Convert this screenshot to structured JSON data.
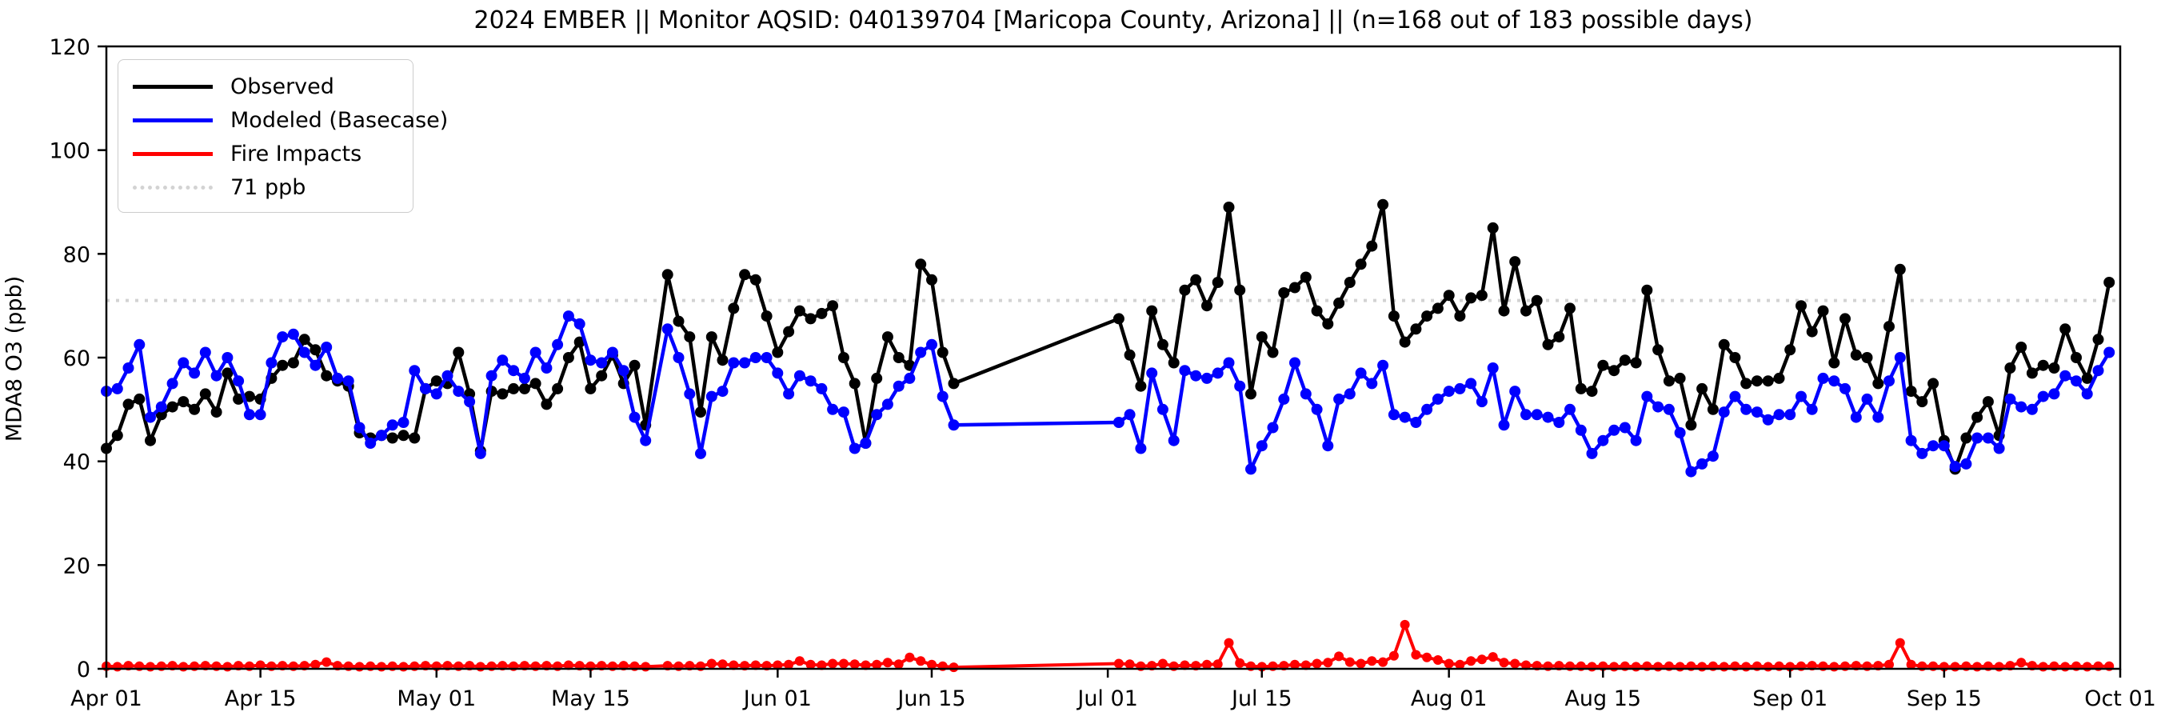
{
  "figure": {
    "title": "2024 EMBER || Monitor AQSID: 040139704 [Maricopa County, Arizona] || (n=168 out of 183 possible days)",
    "ylabel": "MDA8 O3 (ppb)"
  },
  "legend": {
    "observed_label": "Observed",
    "modeled_label": "Modeled (Basecase)",
    "fire_label": "Fire Impacts",
    "threshold_label": "71 ppb"
  },
  "chart_data": {
    "type": "line",
    "title": "2024 EMBER || Monitor AQSID: 040139704 [Maricopa County, Arizona] || (n=168 out of 183 possible days)",
    "xlabel": "",
    "ylabel": "MDA8 O3 (ppb)",
    "ylim": [
      0,
      120
    ],
    "yticks": [
      0,
      20,
      40,
      60,
      80,
      100,
      120
    ],
    "x_domain_days": 183,
    "x_start": "Apr 01",
    "x_end": "Oct 01",
    "x_tick_labels": [
      "Apr 01",
      "Apr 15",
      "May 01",
      "May 15",
      "Jun 01",
      "Jun 15",
      "Jul 01",
      "Jul 15",
      "Aug 01",
      "Aug 15",
      "Sep 01",
      "Sep 15",
      "Oct 01"
    ],
    "x_tick_day_index": [
      0,
      14,
      30,
      44,
      61,
      75,
      91,
      105,
      122,
      136,
      153,
      167,
      183
    ],
    "grid": false,
    "legend_position": "upper left",
    "threshold": {
      "value": 71,
      "label": "71 ppb",
      "color": "#d3d3d3",
      "style": "dotted"
    },
    "missing_days": [
      "May 21",
      "Jun 18 through Jul 01"
    ],
    "n_observed": 168,
    "n_possible": 183,
    "series": [
      {
        "name": "Observed",
        "color": "#000000",
        "values": [
          42.5,
          45,
          51,
          52,
          44,
          49,
          50.5,
          51.5,
          50,
          53,
          49.5,
          57,
          52,
          52.5,
          52,
          56,
          58.5,
          59,
          63.5,
          61.5,
          56.5,
          55.5,
          54.5,
          45.5,
          44.5,
          45,
          44.5,
          45,
          44.5,
          54,
          55.5,
          55,
          61,
          53,
          42,
          53.5,
          53,
          54,
          54,
          55,
          51,
          54,
          60,
          63,
          54,
          56.5,
          60.5,
          55,
          58.5,
          47,
          null,
          76,
          67,
          64,
          49.5,
          64,
          59.5,
          69.5,
          76,
          75,
          68,
          61,
          65,
          69,
          67.5,
          68.5,
          70,
          60,
          55,
          43.5,
          56,
          64,
          60,
          58.5,
          78,
          75,
          61,
          55,
          null,
          null,
          null,
          null,
          null,
          null,
          null,
          null,
          null,
          null,
          null,
          null,
          null,
          null,
          67.5,
          60.5,
          54.5,
          69,
          62.5,
          59,
          73,
          75,
          70,
          74.5,
          89,
          73,
          53,
          64,
          61,
          72.5,
          73.5,
          75.5,
          69,
          66.5,
          70.5,
          74.5,
          78,
          81.5,
          89.5,
          68,
          63,
          65.5,
          68,
          69.5,
          72,
          68,
          71.5,
          72,
          85,
          69,
          78.5,
          69,
          71,
          62.5,
          64,
          69.5,
          54,
          53.5,
          58.5,
          57.5,
          59.5,
          59,
          73,
          61.5,
          55.5,
          56,
          47,
          54,
          50,
          62.5,
          60,
          55,
          55.5,
          55.5,
          56,
          61.5,
          70,
          65,
          69,
          59,
          67.5,
          60.5,
          60,
          55,
          66,
          77,
          53.5,
          51.5,
          55,
          44,
          38.5,
          44.5,
          48.5,
          51.5,
          45,
          58,
          62,
          57,
          58.5,
          58,
          65.5,
          60,
          56,
          63.5,
          74.5
        ]
      },
      {
        "name": "Modeled (Basecase)",
        "color": "#0000ff",
        "values": [
          53.5,
          54,
          58,
          62.5,
          48.5,
          50.5,
          55,
          59,
          57,
          61,
          56.5,
          60,
          55.5,
          49,
          49,
          59,
          64,
          64.5,
          61,
          58.5,
          62,
          56,
          55.5,
          46.5,
          43.5,
          45,
          47,
          47.5,
          57.5,
          54,
          53,
          56.5,
          53.5,
          51.5,
          41.5,
          56.5,
          59.5,
          57.5,
          56,
          61,
          58,
          62.5,
          68,
          66.5,
          59.5,
          59,
          61,
          57.5,
          48.5,
          44,
          null,
          65.5,
          60,
          53,
          41.5,
          52.5,
          53.5,
          59,
          59,
          60,
          60,
          57,
          53,
          56.5,
          55.5,
          54,
          50,
          49.5,
          42.5,
          43.5,
          49,
          51,
          54.5,
          56,
          61,
          62.5,
          52.5,
          47,
          null,
          null,
          null,
          null,
          null,
          null,
          null,
          null,
          null,
          null,
          null,
          null,
          null,
          null,
          47.5,
          49,
          42.5,
          57,
          50,
          44,
          57.5,
          56.5,
          56,
          57,
          59,
          54.5,
          38.5,
          43,
          46.5,
          52,
          59,
          53,
          50,
          43,
          52,
          53,
          57,
          55,
          58.5,
          49,
          48.5,
          47.5,
          50,
          52,
          53.5,
          54,
          55,
          51.5,
          58,
          47,
          53.5,
          49,
          49,
          48.5,
          47.5,
          50,
          46,
          41.5,
          44,
          46,
          46.5,
          44,
          52.5,
          50.5,
          50,
          45.5,
          38,
          39.5,
          41,
          49.5,
          52.5,
          50,
          49.5,
          48,
          49,
          49,
          52.5,
          50,
          56,
          55.5,
          54,
          48.5,
          52,
          48.5,
          55.5,
          60,
          44,
          41.5,
          43,
          43,
          39,
          39.5,
          44.5,
          44.5,
          42.5,
          52,
          50.5,
          50,
          52.5,
          53,
          56.5,
          55.5,
          53,
          57.5,
          61
        ]
      },
      {
        "name": "Fire Impacts",
        "color": "#ff0000",
        "values": [
          0.5,
          0.4,
          0.6,
          0.5,
          0.4,
          0.5,
          0.6,
          0.4,
          0.5,
          0.6,
          0.5,
          0.4,
          0.6,
          0.5,
          0.7,
          0.5,
          0.6,
          0.5,
          0.6,
          0.8,
          1.3,
          0.6,
          0.5,
          0.4,
          0.5,
          0.4,
          0.5,
          0.4,
          0.5,
          0.6,
          0.5,
          0.6,
          0.5,
          0.6,
          0.4,
          0.5,
          0.6,
          0.5,
          0.6,
          0.5,
          0.6,
          0.5,
          0.7,
          0.6,
          0.5,
          0.6,
          0.5,
          0.6,
          0.5,
          0.4,
          null,
          0.6,
          0.5,
          0.6,
          0.5,
          1.0,
          0.9,
          0.7,
          0.6,
          0.7,
          0.6,
          0.7,
          0.8,
          1.5,
          0.8,
          0.7,
          1.0,
          1.0,
          0.9,
          0.7,
          0.8,
          1.2,
          0.9,
          2.2,
          1.5,
          0.8,
          0.5,
          0.3,
          null,
          null,
          null,
          null,
          null,
          null,
          null,
          null,
          null,
          null,
          null,
          null,
          null,
          null,
          1.0,
          0.9,
          0.5,
          0.6,
          1.0,
          0.5,
          0.7,
          0.6,
          0.8,
          0.9,
          5.0,
          1.1,
          0.5,
          0.4,
          0.5,
          0.6,
          0.8,
          0.7,
          1.0,
          1.2,
          2.4,
          1.3,
          1.0,
          1.5,
          1.3,
          2.5,
          8.5,
          2.7,
          2.2,
          1.7,
          1.0,
          0.8,
          1.5,
          1.8,
          2.3,
          1.2,
          1.0,
          0.7,
          0.6,
          0.5,
          0.6,
          0.5,
          0.5,
          0.4,
          0.5,
          0.4,
          0.5,
          0.4,
          0.5,
          0.4,
          0.5,
          0.4,
          0.5,
          0.4,
          0.5,
          0.4,
          0.5,
          0.4,
          0.5,
          0.4,
          0.5,
          0.4,
          0.5,
          0.6,
          0.5,
          0.4,
          0.5,
          0.6,
          0.5,
          0.6,
          0.8,
          5.0,
          0.8,
          0.5,
          0.5,
          0.4,
          0.4,
          0.5,
          0.4,
          0.5,
          0.4,
          0.6,
          1.2,
          0.6,
          0.4,
          0.5,
          0.4,
          0.5,
          0.4,
          0.5,
          0.5
        ]
      }
    ]
  }
}
